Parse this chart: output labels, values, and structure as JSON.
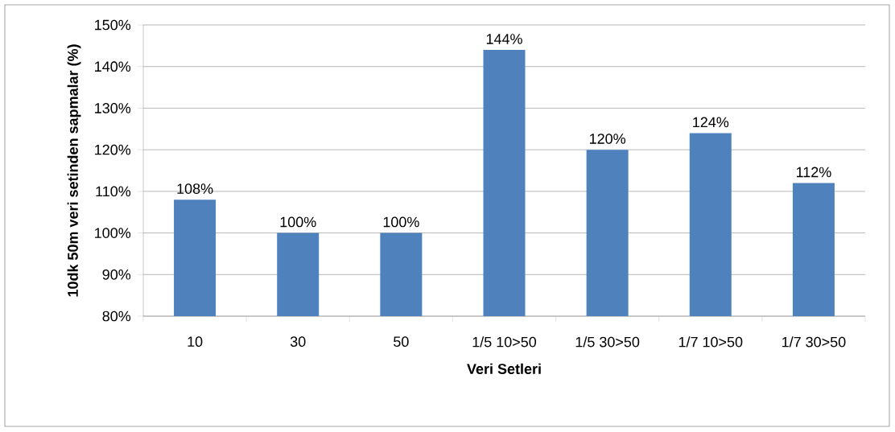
{
  "chart_data": {
    "type": "bar",
    "xlabel": "Veri Setleri",
    "ylabel": "10dk 50m veri setinden sapmalar (%)",
    "categories": [
      "10",
      "30",
      "50",
      "1/5 10>50",
      "1/5 30>50",
      "1/7 10>50",
      "1/7 30>50"
    ],
    "values": [
      108,
      100,
      100,
      144,
      120,
      124,
      112
    ],
    "value_labels": [
      "108%",
      "100%",
      "100%",
      "144%",
      "120%",
      "124%",
      "112%"
    ],
    "color": "#4f81bd",
    "ylim": [
      80,
      150
    ],
    "yticks": [
      {
        "value": 80,
        "label": "80%"
      },
      {
        "value": 90,
        "label": "90%"
      },
      {
        "value": 100,
        "label": "100%"
      },
      {
        "value": 110,
        "label": "110%"
      },
      {
        "value": 120,
        "label": "120%"
      },
      {
        "value": 130,
        "label": "130%"
      },
      {
        "value": 140,
        "label": "140%"
      },
      {
        "value": 150,
        "label": "150%"
      }
    ],
    "grid": "y"
  }
}
